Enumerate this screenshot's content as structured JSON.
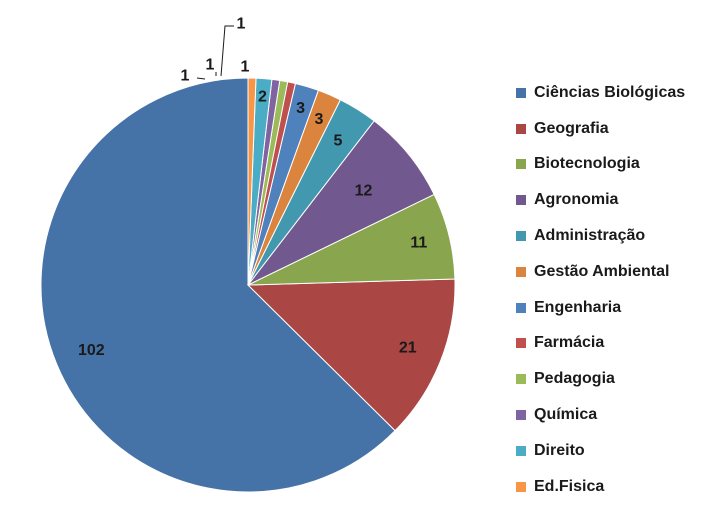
{
  "chart_data": {
    "type": "pie",
    "title": "",
    "slices": [
      {
        "label": "Ciências Biológicas",
        "value": 102,
        "data_label": "102",
        "color": "#4572A7"
      },
      {
        "label": "Geografia",
        "value": 21,
        "data_label": "21",
        "color": "#AA4643"
      },
      {
        "label": "Biotecnologia",
        "value": 11,
        "data_label": "11",
        "color": "#89A54E"
      },
      {
        "label": "Agronomia",
        "value": 12,
        "data_label": "12",
        "color": "#71588F"
      },
      {
        "label": "Administração",
        "value": 5,
        "data_label": "5",
        "color": "#4198AF"
      },
      {
        "label": "Gestão Ambiental",
        "value": 3,
        "data_label": "3",
        "color": "#DB843D"
      },
      {
        "label": "Engenharia",
        "value": 3,
        "data_label": "3",
        "color": "#4F81BD"
      },
      {
        "label": "Farmácia",
        "value": 1,
        "data_label": "1",
        "color": "#C0504D"
      },
      {
        "label": "Pedagogia",
        "value": 1,
        "data_label": "1",
        "color": "#9BBB59"
      },
      {
        "label": "Química",
        "value": 1,
        "data_label": "1",
        "color": "#8064A2"
      },
      {
        "label": "Direito",
        "value": 2,
        "data_label": "2",
        "color": "#4BACC6"
      },
      {
        "label": "Ed.Fisica",
        "value": 1,
        "data_label": "1",
        "color": "#F79646"
      }
    ],
    "legend_position": "right"
  }
}
